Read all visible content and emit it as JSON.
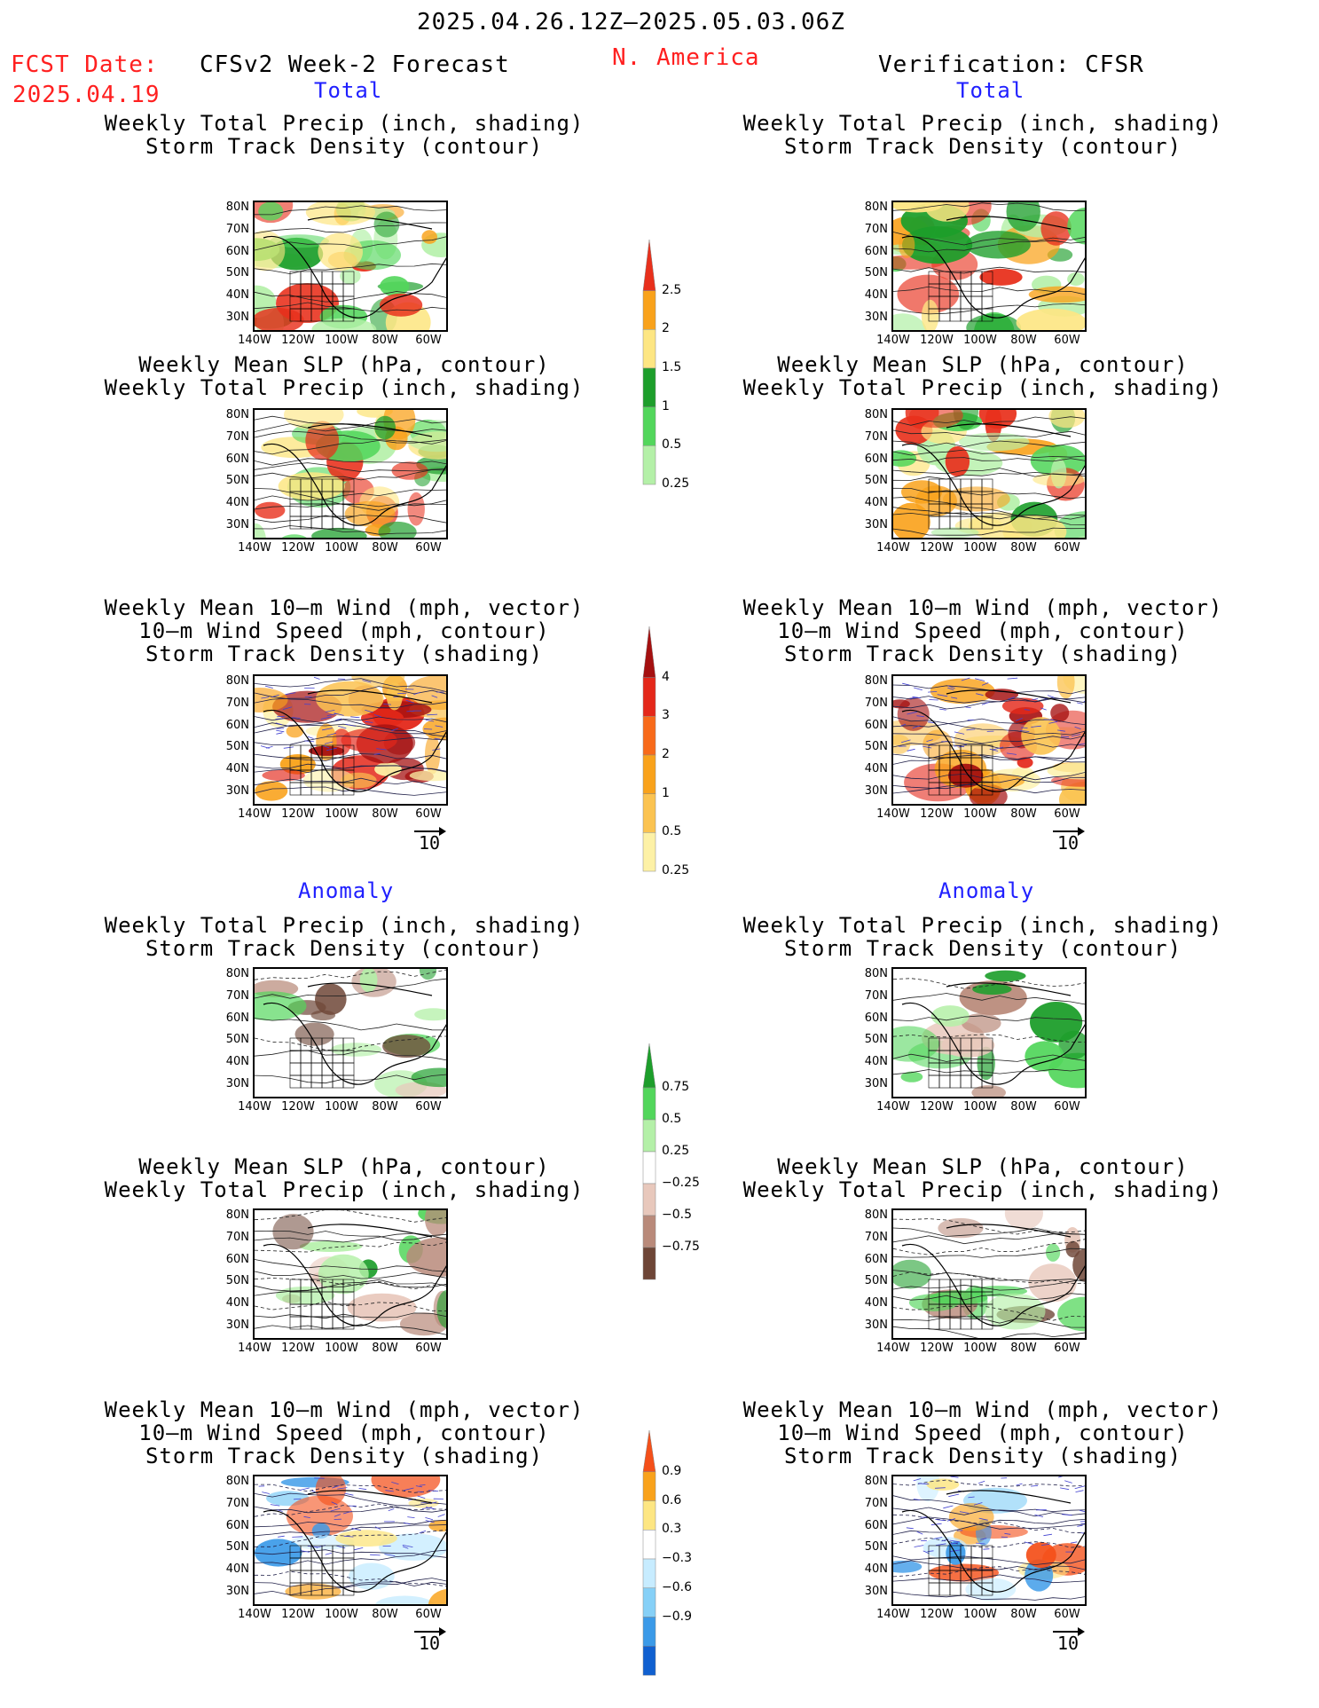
{
  "header": {
    "date_range": "2025.04.26.12Z–2025.05.03.06Z",
    "fcst_label": "FCST Date:",
    "fcst_date": "2025.04.19",
    "left_title": "CFSv2 Week-2 Forecast",
    "region": "N. America",
    "right_title": "Verification: CFSR"
  },
  "sections": {
    "total": "Total",
    "anomaly": "Anomaly"
  },
  "panel_titles": {
    "precip_track": [
      "Weekly Total Precip (inch, shading)",
      "Storm Track Density (contour)"
    ],
    "slp_precip": [
      "Weekly Mean SLP (hPa, contour)",
      "Weekly Total Precip (inch, shading)"
    ],
    "wind_track": [
      "Weekly Mean 10–m Wind (mph, vector)",
      "10–m Wind Speed (mph, contour)",
      "Storm Track Density (shading)"
    ]
  },
  "axes": {
    "lat_labels": [
      "80N",
      "70N",
      "60N",
      "50N",
      "40N",
      "30N"
    ],
    "lon_labels": [
      "140W",
      "120W",
      "100W",
      "80W",
      "60W"
    ]
  },
  "reference_vector": "10",
  "colorbars": {
    "precip_total": {
      "labels": [
        "2.5",
        "2",
        "1.5",
        "1",
        "0.5",
        "0.25"
      ],
      "colors": [
        "#e8301c",
        "#f9a21b",
        "#fde683",
        "#1d9e2b",
        "#52d65b",
        "#b4f0a8"
      ]
    },
    "track_total": {
      "labels": [
        "4",
        "3",
        "2",
        "1",
        "0.5",
        "0.25"
      ],
      "colors": [
        "#a51010",
        "#e4281a",
        "#f86a1a",
        "#f9a21b",
        "#fbc351",
        "#fdf1a6"
      ]
    },
    "precip_anom": {
      "labels": [
        "0.75",
        "0.5",
        "0.25",
        "−0.25",
        "−0.5",
        "−0.75"
      ],
      "colors": [
        "#1d9e2b",
        "#52d65b",
        "#b4f0a8",
        "#ffffff",
        "#e8c8bc",
        "#b98a7a",
        "#6e4637"
      ]
    },
    "track_anom": {
      "labels": [
        "0.9",
        "0.6",
        "0.3",
        "−0.3",
        "−0.6",
        "−0.9"
      ],
      "colors": [
        "#f4501a",
        "#f9a21b",
        "#fde683",
        "#ffffff",
        "#c7ecff",
        "#86d0f7",
        "#3b9ae8",
        "#1060d0"
      ]
    }
  }
}
